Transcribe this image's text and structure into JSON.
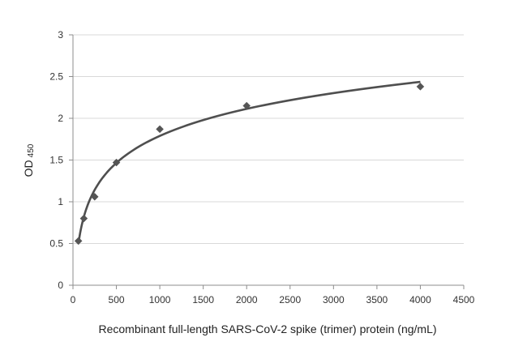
{
  "chart_data": {
    "type": "scatter",
    "title": "",
    "xlabel": "Recombinant full-length SARS-CoV-2 spike (trimer) protein (ng/mL)",
    "ylabel": "OD",
    "ylabel_subscript": "450",
    "xlim": [
      0,
      4500
    ],
    "ylim": [
      0,
      3
    ],
    "x_ticks": [
      "0",
      "500",
      "1000",
      "1500",
      "2000",
      "2500",
      "3000",
      "3500",
      "4000",
      "4500"
    ],
    "y_ticks": [
      "0",
      "0.5",
      "1",
      "1.5",
      "2",
      "2.5",
      "3"
    ],
    "grid": true,
    "series": [
      {
        "x": [
          62.5,
          125,
          250,
          500,
          1000,
          2000,
          4000
        ],
        "y": [
          0.53,
          0.8,
          1.06,
          1.47,
          1.87,
          2.15,
          2.38
        ]
      }
    ],
    "fit_curve": {
      "type": "logarithmic",
      "x_range": [
        62.5,
        4000
      ]
    },
    "colors": {
      "marker": "#555555",
      "curve": "#4f4f4f",
      "grid": "#d9d9d9",
      "axis": "#8c8c8c"
    }
  }
}
